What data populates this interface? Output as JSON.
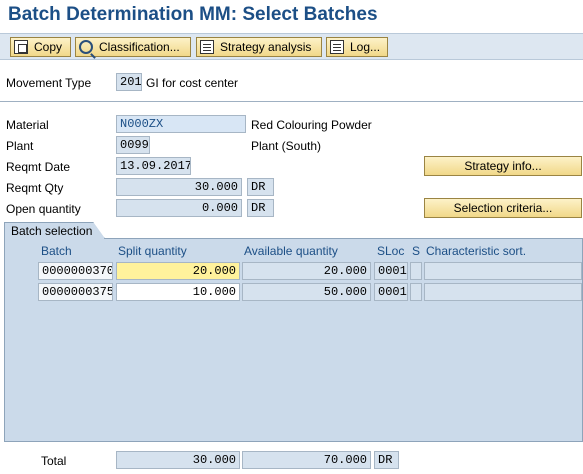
{
  "title": "Batch Determination MM: Select Batches",
  "toolbar": {
    "copy": "Copy",
    "classification": "Classification...",
    "strategy_analysis": "Strategy analysis",
    "log": "Log..."
  },
  "header": {
    "movement_type_label": "Movement Type",
    "movement_type_value": "201",
    "movement_type_text": "GI for cost center",
    "material_label": "Material",
    "material_value": "N000ZX",
    "material_text": "Red Colouring Powder",
    "plant_label": "Plant",
    "plant_value": "0099",
    "plant_text": "Plant (South)",
    "reqmt_date_label": "Reqmt Date",
    "reqmt_date_value": "13.09.2017",
    "reqmt_qty_label": "Reqmt Qty",
    "reqmt_qty_value": "30.000",
    "reqmt_qty_unit": "DR",
    "open_qty_label": "Open quantity",
    "open_qty_value": "0.000",
    "open_qty_unit": "DR",
    "strategy_info_button": "Strategy info...",
    "selection_criteria_button": "Selection criteria..."
  },
  "batch_selection": {
    "tab_label": "Batch selection",
    "columns": {
      "batch": "Batch",
      "split_quantity": "Split quantity",
      "available_quantity": "Available quantity",
      "sloc": "SLoc",
      "s": "S",
      "characteristic_sort": "Characteristic sort."
    },
    "rows": [
      {
        "batch": "0000000370",
        "split_quantity": "20.000",
        "available_quantity": "20.000",
        "sloc": "0001",
        "s": "",
        "characteristic_sort": ""
      },
      {
        "batch": "0000000375",
        "split_quantity": "10.000",
        "available_quantity": "50.000",
        "sloc": "0001",
        "s": "",
        "characteristic_sort": ""
      }
    ]
  },
  "total": {
    "label": "Total",
    "split_quantity": "30.000",
    "available_quantity": "70.000",
    "unit": "DR"
  }
}
